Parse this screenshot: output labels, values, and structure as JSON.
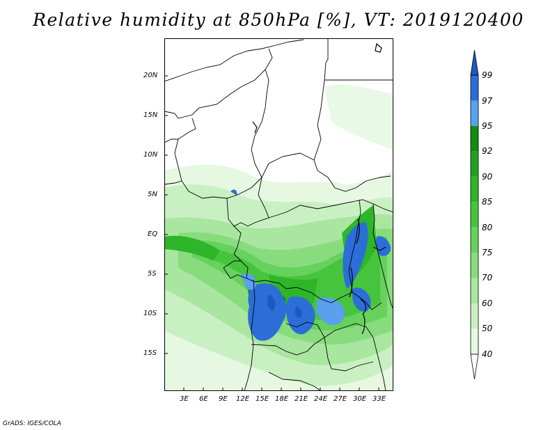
{
  "title": "Relative humidity at 850hPa [%], VT: 2019120400",
  "credit": "GrADS: IGES/COLA",
  "map": {
    "lat_ticks": [
      "20N",
      "15N",
      "10N",
      "5N",
      "EQ",
      "5S",
      "10S",
      "15S"
    ],
    "lon_ticks": [
      "3E",
      "6E",
      "9E",
      "12E",
      "15E",
      "18E",
      "21E",
      "24E",
      "27E",
      "30E",
      "33E"
    ]
  },
  "colorbar": {
    "labels": [
      "40",
      "50",
      "60",
      "70",
      "75",
      "80",
      "85",
      "90",
      "92",
      "95",
      "97",
      "99"
    ],
    "colors": [
      "#ffffff",
      "#e6f8e2",
      "#c9f0c2",
      "#a9e6a0",
      "#88dc7e",
      "#66d15c",
      "#46c43e",
      "#2eb52a",
      "#1ea21e",
      "#138c13",
      "#5aa0ec",
      "#2c6ed8",
      "#1f58c0"
    ]
  }
}
